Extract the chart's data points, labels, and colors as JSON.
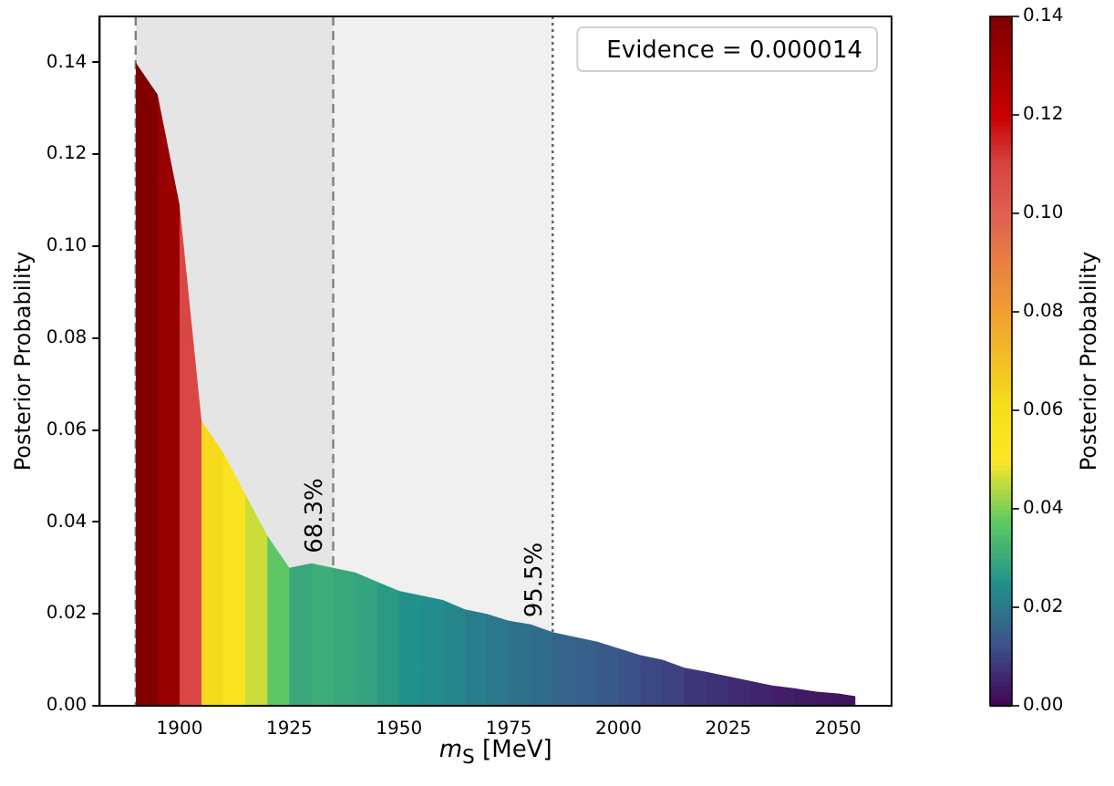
{
  "chart_data": {
    "type": "area",
    "xlabel": "m$_{S}$ [MeV]",
    "ylabel": "Posterior Probability",
    "clabel": "Posterior Probability",
    "x": [
      1890,
      1895,
      1900,
      1905,
      1910,
      1915,
      1920,
      1925,
      1930,
      1935,
      1940,
      1945,
      1950,
      1955,
      1960,
      1965,
      1970,
      1975,
      1980,
      1985,
      1990,
      1995,
      2000,
      2005,
      2010,
      2015,
      2020,
      2025,
      2030,
      2035,
      2040,
      2045,
      2050,
      2054
    ],
    "values": [
      0.14,
      0.133,
      0.109,
      0.062,
      0.055,
      0.046,
      0.037,
      0.03,
      0.031,
      0.03,
      0.029,
      0.027,
      0.025,
      0.024,
      0.023,
      0.021,
      0.02,
      0.0185,
      0.0177,
      0.016,
      0.015,
      0.014,
      0.0125,
      0.011,
      0.01,
      0.0083,
      0.0074,
      0.0064,
      0.0054,
      0.0044,
      0.0038,
      0.0031,
      0.0027,
      0.0021
    ],
    "xlim": [
      1881.8,
      2062.2
    ],
    "xticks": [
      1900,
      1925,
      1950,
      1975,
      2000,
      2025,
      2050
    ],
    "ylim": [
      0,
      0.15
    ],
    "yticks": [
      {
        "value": 0,
        "label": "0.00"
      },
      {
        "value": 0.02,
        "label": "0.02"
      },
      {
        "value": 0.04,
        "label": "0.04"
      },
      {
        "value": 0.06,
        "label": "0.06"
      },
      {
        "value": 0.08,
        "label": "0.08"
      },
      {
        "value": 0.1,
        "label": "0.10"
      },
      {
        "value": 0.12,
        "label": "0.12"
      },
      {
        "value": 0.14,
        "label": "0.14"
      }
    ],
    "clim": [
      0,
      0.14
    ],
    "cticks": [
      {
        "value": 0,
        "label": "0.00"
      },
      {
        "value": 0.02,
        "label": "0.02"
      },
      {
        "value": 0.04,
        "label": "0.04"
      },
      {
        "value": 0.06,
        "label": "0.06"
      },
      {
        "value": 0.08,
        "label": "0.08"
      },
      {
        "value": 0.1,
        "label": "0.10"
      },
      {
        "value": 0.12,
        "label": "0.12"
      },
      {
        "value": 0.14,
        "label": "0.14"
      }
    ],
    "bands": [
      {
        "axis": "x",
        "from": 1890,
        "to": 1985,
        "label": "95.5%",
        "color": "#f0f0f0"
      },
      {
        "axis": "x",
        "from": 1890,
        "to": 1935,
        "label": "68.3%",
        "color": "#e5e5e5"
      }
    ],
    "ref_lines": [
      {
        "axis": "x",
        "value": 1890,
        "color": "#808080",
        "line_style": "dashed"
      },
      {
        "axis": "x",
        "value": 1935,
        "color": "#808080",
        "line_style": "dashed"
      },
      {
        "axis": "x",
        "value": 1985,
        "color": "#606060",
        "line_style": "dotted"
      }
    ],
    "annotations": [
      "Evidence = 0.000014"
    ],
    "grid": false,
    "legend": false
  }
}
